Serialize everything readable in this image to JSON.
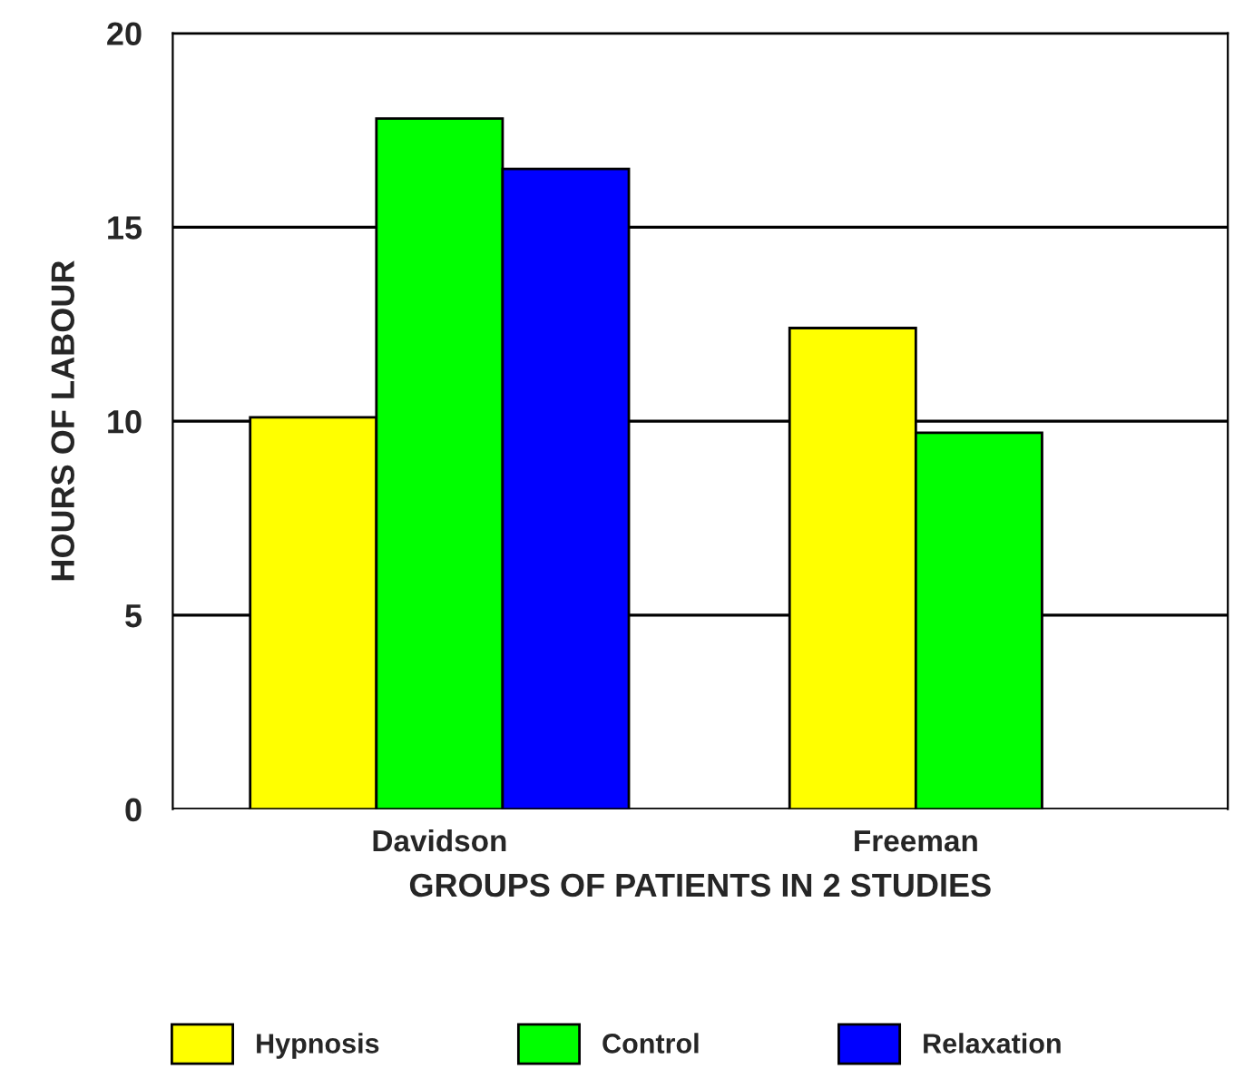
{
  "chart_data": {
    "type": "bar",
    "xlabel": "GROUPS OF PATIENTS IN 2 STUDIES",
    "ylabel": "HOURS OF LABOUR",
    "categories": [
      "Davidson",
      "Freeman"
    ],
    "series": [
      {
        "name": "Hypnosis",
        "color": "#ffff00",
        "values": [
          10.1,
          12.4
        ]
      },
      {
        "name": "Control",
        "color": "#00ff00",
        "values": [
          17.8,
          9.7
        ]
      },
      {
        "name": "Relaxation",
        "color": "#0000ff",
        "values": [
          16.5,
          null
        ]
      }
    ],
    "ylim": [
      0,
      20
    ],
    "yticks": [
      0,
      5,
      10,
      15,
      20
    ],
    "grid": "y",
    "legend": "bottom"
  }
}
